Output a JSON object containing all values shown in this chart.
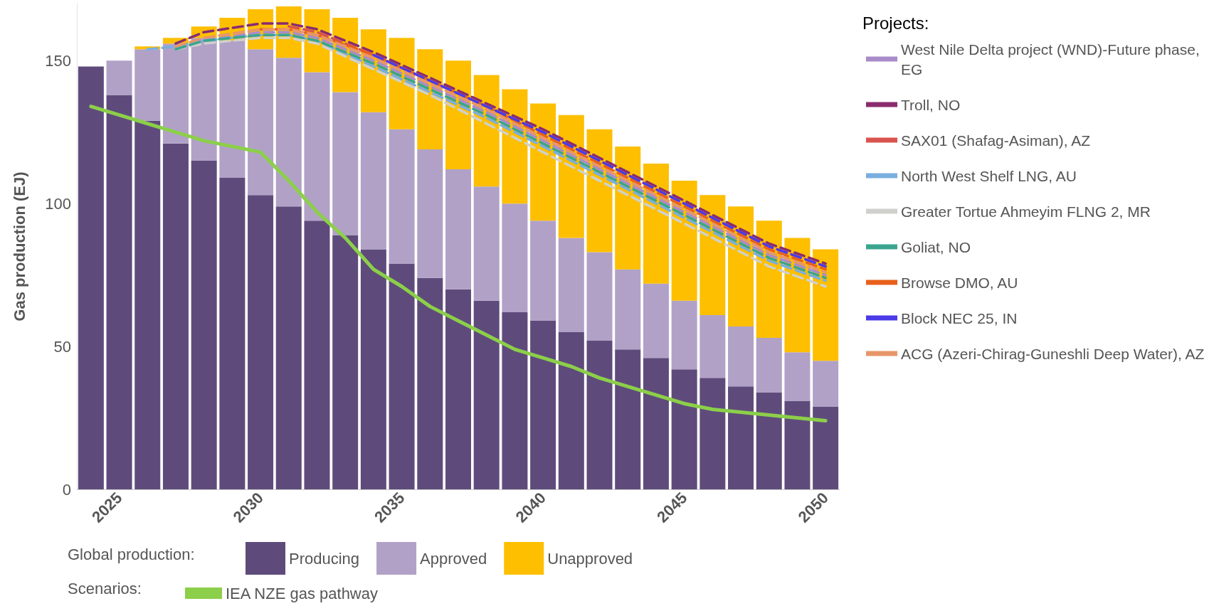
{
  "chart_data": {
    "type": "bar",
    "stacked": true,
    "ylabel": "Gas production (EJ)",
    "legend_title": "Projects:",
    "legend": "right",
    "grid": false,
    "marker": "none",
    "annotations": [
      "Global production:",
      "Scenarios:"
    ],
    "x": [
      2024,
      2025,
      2026,
      2027,
      2028,
      2029,
      2030,
      2031,
      2032,
      2033,
      2034,
      2035,
      2036,
      2037,
      2038,
      2039,
      2040,
      2041,
      2042,
      2043,
      2044,
      2045,
      2046,
      2047,
      2048,
      2049,
      2050
    ],
    "xlim": [
      2023.5,
      2050.5
    ],
    "xticks": [
      2025,
      2030,
      2035,
      2040,
      2045,
      2050
    ],
    "ylim": [
      0,
      170
    ],
    "yticks": [
      0,
      50,
      100,
      150
    ],
    "series": [
      {
        "name": "Producing",
        "color": "#5f4b7b",
        "values": [
          148,
          138,
          129,
          121,
          115,
          109,
          103,
          99,
          94,
          89,
          84,
          79,
          74,
          70,
          66,
          62,
          59,
          55,
          52,
          49,
          46,
          42,
          39,
          36,
          34,
          31,
          29
        ]
      },
      {
        "name": "Approved",
        "color": "#b1a1c7",
        "values": [
          0,
          12,
          25,
          35,
          43,
          48,
          51,
          52,
          52,
          50,
          48,
          47,
          45,
          42,
          40,
          38,
          35,
          33,
          31,
          28,
          26,
          24,
          22,
          21,
          19,
          17,
          16
        ]
      },
      {
        "name": "Unapproved",
        "color": "#fdbf00",
        "values": [
          0,
          0,
          1,
          2,
          4,
          8,
          14,
          18,
          22,
          26,
          29,
          32,
          35,
          38,
          39,
          40,
          41,
          43,
          43,
          43,
          42,
          42,
          42,
          42,
          41,
          40,
          39
        ]
      },
      {
        "name": "IEA NZE gas pathway",
        "type": "line",
        "line_style": "solid",
        "color": "#8ccf4a",
        "x": [
          2024,
          2025,
          2026,
          2027,
          2028,
          2029,
          2030,
          2031,
          2032,
          2033,
          2034,
          2035,
          2036,
          2037,
          2038,
          2039,
          2040,
          2041,
          2042,
          2043,
          2044,
          2045,
          2046,
          2047,
          2048,
          2049,
          2050
        ],
        "values": [
          134,
          131,
          128,
          125,
          122,
          120,
          118,
          108,
          97,
          88,
          77,
          71,
          64,
          59,
          54,
          49,
          46,
          43,
          39,
          36,
          33,
          30,
          28,
          27,
          26,
          25,
          24
        ]
      },
      {
        "name": "West Nile Delta project (WND)-Future phase, EG",
        "type": "line",
        "line_style": "dashed",
        "color": "#a98bc9",
        "x": [
          2027,
          2028,
          2030,
          2031,
          2032,
          2034,
          2036,
          2038,
          2040,
          2042,
          2044,
          2046,
          2048,
          2050
        ],
        "values": [
          155,
          157,
          160,
          160,
          158,
          150,
          141,
          132,
          122,
          112,
          102,
          92,
          82,
          75
        ]
      },
      {
        "name": "Troll, NO",
        "type": "line",
        "line_style": "dashed",
        "color": "#8a2b6e",
        "x": [
          2027,
          2028,
          2030,
          2031,
          2032,
          2034,
          2036,
          2038,
          2040,
          2042,
          2044,
          2046,
          2048,
          2050
        ],
        "values": [
          156,
          160,
          163,
          163,
          161,
          153,
          144,
          135,
          126,
          116,
          106,
          96,
          86,
          79
        ]
      },
      {
        "name": "SAX01 (Shafag-Asiman), AZ",
        "type": "line",
        "line_style": "dashed",
        "color": "#d9534f",
        "x": [
          2031,
          2032,
          2034,
          2036,
          2038,
          2040,
          2042,
          2044,
          2046,
          2048,
          2050
        ],
        "values": [
          162,
          160,
          152,
          143,
          134,
          125,
          115,
          105,
          95,
          85,
          78
        ]
      },
      {
        "name": "North West Shelf LNG, AU",
        "type": "line",
        "line_style": "dashed",
        "color": "#7aaee0",
        "x": [
          2026,
          2027,
          2028,
          2030,
          2031,
          2032,
          2034,
          2036,
          2038,
          2040,
          2042,
          2044,
          2046,
          2048,
          2050
        ],
        "values": [
          154,
          155,
          157,
          159,
          159,
          157,
          148,
          139,
          130,
          120,
          110,
          100,
          90,
          80,
          73
        ]
      },
      {
        "name": "Greater Tortue Ahmeyim FLNG 2, MR",
        "type": "line",
        "line_style": "dashed",
        "color": "#cfd0cc",
        "x": [
          2027,
          2028,
          2030,
          2031,
          2032,
          2034,
          2036,
          2038,
          2040,
          2042,
          2044,
          2046,
          2048,
          2050
        ],
        "values": [
          154,
          156,
          158,
          158,
          156,
          147,
          138,
          128,
          118,
          108,
          98,
          88,
          78,
          71
        ]
      },
      {
        "name": "Goliat, NO",
        "type": "line",
        "line_style": "dashed",
        "color": "#3aa58f",
        "x": [
          2027,
          2028,
          2030,
          2031,
          2032,
          2034,
          2036,
          2038,
          2040,
          2042,
          2044,
          2046,
          2048,
          2050
        ],
        "values": [
          154,
          157,
          159,
          159,
          157,
          149,
          140,
          131,
          121,
          111,
          101,
          91,
          81,
          74
        ]
      },
      {
        "name": "Browse DMO, AU",
        "type": "line",
        "line_style": "dashed",
        "color": "#e8601c",
        "x": [
          2030,
          2031,
          2032,
          2034,
          2036,
          2038,
          2040,
          2042,
          2044,
          2046,
          2048,
          2050
        ],
        "values": [
          161,
          161,
          159,
          152,
          143,
          134,
          124,
          114,
          104,
          94,
          84,
          77
        ]
      },
      {
        "name": "Block NEC 25, IN",
        "type": "line",
        "line_style": "dashed",
        "color": "#4b3be8",
        "x": [
          2034,
          2036,
          2038,
          2040,
          2042,
          2044,
          2046,
          2048,
          2050
        ],
        "values": [
          152,
          143,
          134,
          125,
          115,
          105,
          95,
          85,
          78
        ]
      },
      {
        "name": "ACG (Azeri-Chirag-Guneshli Deep Water), AZ",
        "type": "line",
        "line_style": "dashed",
        "color": "#e8956a",
        "x": [
          2027,
          2028,
          2030,
          2031,
          2032,
          2034,
          2036,
          2038,
          2040,
          2042,
          2044,
          2046,
          2048,
          2050
        ],
        "values": [
          155,
          158,
          161,
          161,
          159,
          151,
          142,
          133,
          123,
          113,
          103,
          93,
          83,
          76
        ]
      }
    ]
  }
}
